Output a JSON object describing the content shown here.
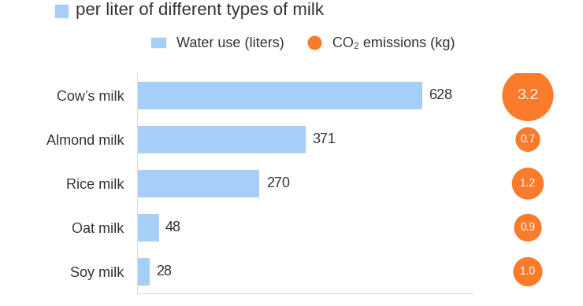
{
  "chart_data": {
    "type": "bar",
    "orientation": "horizontal",
    "title": "per liter of different types of milk",
    "categories": [
      "Cow’s milk",
      "Almond milk",
      "Rice milk",
      "Oat milk",
      "Soy milk"
    ],
    "series": [
      {
        "name": "Water use (liters)",
        "type": "bar",
        "color": "#a5cff7",
        "values": [
          628,
          371,
          270,
          48,
          28
        ]
      },
      {
        "name": "CO₂ emissions (kg)",
        "type": "scatter",
        "marker": "o",
        "color": "#fa7b2c",
        "values": [
          3.2,
          0.7,
          1.2,
          0.9,
          1.0
        ]
      }
    ],
    "xlim": [
      0,
      740
    ],
    "xticks": [],
    "data_labels": true,
    "tick_labels": "y",
    "legend": "upper center",
    "grid": false
  }
}
